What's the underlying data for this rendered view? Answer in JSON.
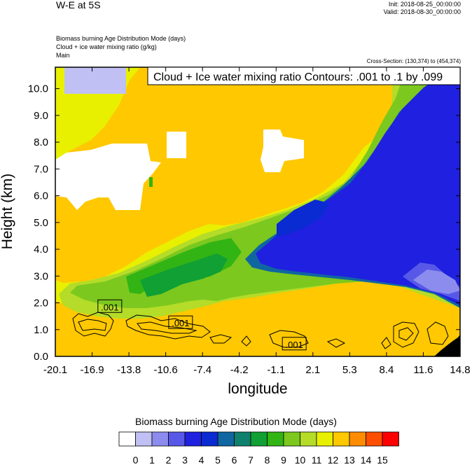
{
  "header": {
    "title": "W-E at 5S",
    "init": "Init: 2018-08-25_00:00:00",
    "valid": "Valid: 2018-08-30_00:00:00",
    "var1": "Biomass burning Age Distribution Mode   (days)",
    "var2": "Cloud + ice water mixing ratio   (g/kg)",
    "var3": "Main",
    "cross_section": "Cross-Section: (130,374) to (454,374)"
  },
  "colors": {
    "scale": [
      "#ffffff",
      "#c0c0f4",
      "#8c8cee",
      "#5858e8",
      "#2020e0",
      "#0a2ad2",
      "#1066a0",
      "#10806e",
      "#10a034",
      "#32b414",
      "#7cc81e",
      "#b4dc28",
      "#e8f000",
      "#ffc800",
      "#ff8c00",
      "#ff4e00",
      "#ff0000"
    ],
    "terrain": "#000000"
  },
  "chart_data": {
    "type": "heatmap",
    "title": "Cloud + Ice water mixing ratio Contours: .001 to .1 by .099",
    "xlabel": "longitude",
    "ylabel": "Height (km)",
    "xlim": [
      -20.1,
      14.8
    ],
    "ylim": [
      0.0,
      10.8
    ],
    "x_ticks": [
      "-20.1",
      "-16.9",
      "-13.8",
      "-10.6",
      "-7.4",
      "-4.2",
      "-1.1",
      "2.1",
      "5.3",
      "8.4",
      "11.6",
      "14.8"
    ],
    "y_ticks": [
      "0.0",
      "1.0",
      "2.0",
      "3.0",
      "4.0",
      "5.0",
      "6.0",
      "7.0",
      "8.0",
      "9.0",
      "10.0"
    ],
    "contour_labels": [
      {
        "text": ".001",
        "lon": -15.4,
        "height": 1.85
      },
      {
        "text": ".001",
        "lon": -9.3,
        "height": 1.25
      },
      {
        "text": ".001",
        "lon": 0.5,
        "height": 0.45
      }
    ],
    "colorbar": {
      "title": "Biomass burning Age Distribution Mode  (days)",
      "labels": [
        "0",
        "1",
        "2",
        "3",
        "4",
        "5",
        "6",
        "7",
        "8",
        "9",
        "10",
        "11",
        "12",
        "13",
        "14",
        "15"
      ]
    }
  }
}
